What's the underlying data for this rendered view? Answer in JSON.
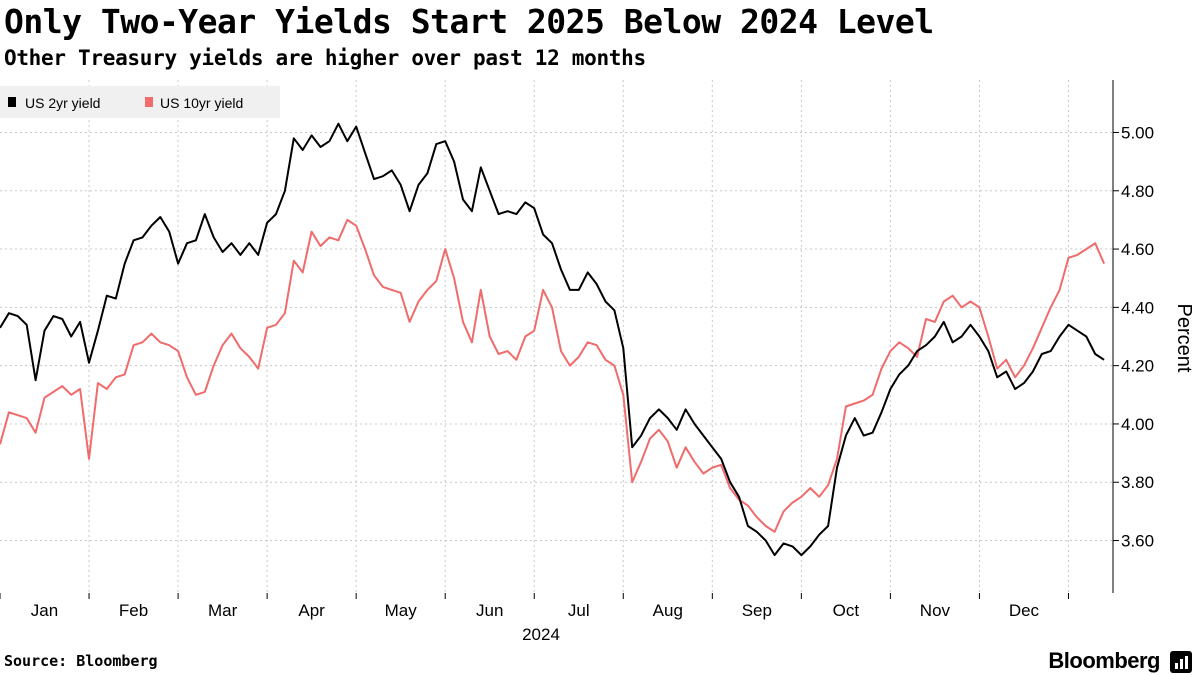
{
  "title": "Only Two-Year Yields Start 2025 Below 2024 Level",
  "subtitle": "Other Treasury yields are higher over past 12 months",
  "source": "Source: Bloomberg",
  "brand": "Bloomberg",
  "chart_data": {
    "type": "line",
    "xlabel": "2024",
    "ylabel": "Percent",
    "ylim": [
      3.42,
      5.18
    ],
    "yticks": [
      "3.60",
      "3.80",
      "4.00",
      "4.20",
      "4.40",
      "4.60",
      "4.80",
      "5.00"
    ],
    "xlim": [
      0,
      12.5
    ],
    "months": [
      "Jan",
      "Feb",
      "Mar",
      "Apr",
      "May",
      "Jun",
      "Jul",
      "Aug",
      "Sep",
      "Oct",
      "Nov",
      "Dec"
    ],
    "grid": true,
    "legend": "top-left",
    "series": [
      {
        "name": "US 2yr yield",
        "color": "#000000",
        "points": [
          [
            0.0,
            4.33
          ],
          [
            0.1,
            4.38
          ],
          [
            0.2,
            4.37
          ],
          [
            0.3,
            4.34
          ],
          [
            0.4,
            4.15
          ],
          [
            0.5,
            4.32
          ],
          [
            0.6,
            4.37
          ],
          [
            0.7,
            4.36
          ],
          [
            0.8,
            4.3
          ],
          [
            0.9,
            4.35
          ],
          [
            1.0,
            4.21
          ],
          [
            1.1,
            4.32
          ],
          [
            1.2,
            4.44
          ],
          [
            1.3,
            4.43
          ],
          [
            1.4,
            4.55
          ],
          [
            1.5,
            4.63
          ],
          [
            1.6,
            4.64
          ],
          [
            1.7,
            4.68
          ],
          [
            1.8,
            4.71
          ],
          [
            1.9,
            4.66
          ],
          [
            2.0,
            4.55
          ],
          [
            2.1,
            4.62
          ],
          [
            2.2,
            4.63
          ],
          [
            2.3,
            4.72
          ],
          [
            2.4,
            4.64
          ],
          [
            2.5,
            4.59
          ],
          [
            2.6,
            4.62
          ],
          [
            2.7,
            4.58
          ],
          [
            2.8,
            4.62
          ],
          [
            2.9,
            4.58
          ],
          [
            3.0,
            4.69
          ],
          [
            3.1,
            4.72
          ],
          [
            3.2,
            4.8
          ],
          [
            3.3,
            4.98
          ],
          [
            3.4,
            4.94
          ],
          [
            3.5,
            4.99
          ],
          [
            3.6,
            4.95
          ],
          [
            3.7,
            4.97
          ],
          [
            3.8,
            5.03
          ],
          [
            3.9,
            4.97
          ],
          [
            4.0,
            5.02
          ],
          [
            4.1,
            4.93
          ],
          [
            4.2,
            4.84
          ],
          [
            4.3,
            4.85
          ],
          [
            4.4,
            4.87
          ],
          [
            4.5,
            4.82
          ],
          [
            4.6,
            4.73
          ],
          [
            4.7,
            4.82
          ],
          [
            4.8,
            4.86
          ],
          [
            4.9,
            4.96
          ],
          [
            5.0,
            4.97
          ],
          [
            5.1,
            4.9
          ],
          [
            5.2,
            4.77
          ],
          [
            5.3,
            4.73
          ],
          [
            5.4,
            4.88
          ],
          [
            5.5,
            4.8
          ],
          [
            5.6,
            4.72
          ],
          [
            5.7,
            4.73
          ],
          [
            5.8,
            4.72
          ],
          [
            5.9,
            4.76
          ],
          [
            6.0,
            4.74
          ],
          [
            6.1,
            4.65
          ],
          [
            6.2,
            4.62
          ],
          [
            6.3,
            4.53
          ],
          [
            6.4,
            4.46
          ],
          [
            6.5,
            4.46
          ],
          [
            6.6,
            4.52
          ],
          [
            6.7,
            4.48
          ],
          [
            6.8,
            4.42
          ],
          [
            6.9,
            4.39
          ],
          [
            7.0,
            4.26
          ],
          [
            7.1,
            3.92
          ],
          [
            7.2,
            3.96
          ],
          [
            7.3,
            4.02
          ],
          [
            7.4,
            4.05
          ],
          [
            7.5,
            4.02
          ],
          [
            7.6,
            3.98
          ],
          [
            7.7,
            4.05
          ],
          [
            7.8,
            4.0
          ],
          [
            7.9,
            3.96
          ],
          [
            8.0,
            3.92
          ],
          [
            8.1,
            3.88
          ],
          [
            8.2,
            3.8
          ],
          [
            8.3,
            3.75
          ],
          [
            8.4,
            3.65
          ],
          [
            8.5,
            3.63
          ],
          [
            8.6,
            3.6
          ],
          [
            8.7,
            3.55
          ],
          [
            8.8,
            3.59
          ],
          [
            8.9,
            3.58
          ],
          [
            9.0,
            3.55
          ],
          [
            9.1,
            3.58
          ],
          [
            9.2,
            3.62
          ],
          [
            9.3,
            3.65
          ],
          [
            9.4,
            3.85
          ],
          [
            9.5,
            3.96
          ],
          [
            9.6,
            4.02
          ],
          [
            9.7,
            3.96
          ],
          [
            9.8,
            3.97
          ],
          [
            9.9,
            4.04
          ],
          [
            10.0,
            4.12
          ],
          [
            10.1,
            4.17
          ],
          [
            10.2,
            4.2
          ],
          [
            10.3,
            4.25
          ],
          [
            10.4,
            4.27
          ],
          [
            10.5,
            4.3
          ],
          [
            10.6,
            4.35
          ],
          [
            10.7,
            4.28
          ],
          [
            10.8,
            4.3
          ],
          [
            10.9,
            4.34
          ],
          [
            11.0,
            4.3
          ],
          [
            11.1,
            4.25
          ],
          [
            11.2,
            4.16
          ],
          [
            11.3,
            4.18
          ],
          [
            11.4,
            4.12
          ],
          [
            11.5,
            4.14
          ],
          [
            11.6,
            4.18
          ],
          [
            11.7,
            4.24
          ],
          [
            11.8,
            4.25
          ],
          [
            11.9,
            4.3
          ],
          [
            12.0,
            4.34
          ],
          [
            12.1,
            4.32
          ],
          [
            12.2,
            4.3
          ],
          [
            12.3,
            4.24
          ],
          [
            12.4,
            4.22
          ]
        ]
      },
      {
        "name": "US 10yr yield",
        "color": "#f06b6b",
        "points": [
          [
            0.0,
            3.93
          ],
          [
            0.1,
            4.04
          ],
          [
            0.2,
            4.03
          ],
          [
            0.3,
            4.02
          ],
          [
            0.4,
            3.97
          ],
          [
            0.5,
            4.09
          ],
          [
            0.6,
            4.11
          ],
          [
            0.7,
            4.13
          ],
          [
            0.8,
            4.1
          ],
          [
            0.9,
            4.12
          ],
          [
            1.0,
            3.88
          ],
          [
            1.1,
            4.14
          ],
          [
            1.2,
            4.12
          ],
          [
            1.3,
            4.16
          ],
          [
            1.4,
            4.17
          ],
          [
            1.5,
            4.27
          ],
          [
            1.6,
            4.28
          ],
          [
            1.7,
            4.31
          ],
          [
            1.8,
            4.28
          ],
          [
            1.9,
            4.27
          ],
          [
            2.0,
            4.25
          ],
          [
            2.1,
            4.16
          ],
          [
            2.2,
            4.1
          ],
          [
            2.3,
            4.11
          ],
          [
            2.4,
            4.2
          ],
          [
            2.5,
            4.27
          ],
          [
            2.6,
            4.31
          ],
          [
            2.7,
            4.26
          ],
          [
            2.8,
            4.23
          ],
          [
            2.9,
            4.19
          ],
          [
            3.0,
            4.33
          ],
          [
            3.1,
            4.34
          ],
          [
            3.2,
            4.38
          ],
          [
            3.3,
            4.56
          ],
          [
            3.4,
            4.52
          ],
          [
            3.5,
            4.66
          ],
          [
            3.6,
            4.61
          ],
          [
            3.7,
            4.64
          ],
          [
            3.8,
            4.63
          ],
          [
            3.9,
            4.7
          ],
          [
            4.0,
            4.68
          ],
          [
            4.1,
            4.6
          ],
          [
            4.2,
            4.51
          ],
          [
            4.3,
            4.47
          ],
          [
            4.4,
            4.46
          ],
          [
            4.5,
            4.45
          ],
          [
            4.6,
            4.35
          ],
          [
            4.7,
            4.42
          ],
          [
            4.8,
            4.46
          ],
          [
            4.9,
            4.49
          ],
          [
            5.0,
            4.6
          ],
          [
            5.1,
            4.5
          ],
          [
            5.2,
            4.35
          ],
          [
            5.3,
            4.28
          ],
          [
            5.4,
            4.46
          ],
          [
            5.5,
            4.3
          ],
          [
            5.6,
            4.24
          ],
          [
            5.7,
            4.25
          ],
          [
            5.8,
            4.22
          ],
          [
            5.9,
            4.3
          ],
          [
            6.0,
            4.32
          ],
          [
            6.1,
            4.46
          ],
          [
            6.2,
            4.4
          ],
          [
            6.3,
            4.25
          ],
          [
            6.4,
            4.2
          ],
          [
            6.5,
            4.23
          ],
          [
            6.6,
            4.28
          ],
          [
            6.7,
            4.27
          ],
          [
            6.8,
            4.22
          ],
          [
            6.9,
            4.2
          ],
          [
            7.0,
            4.1
          ],
          [
            7.1,
            3.8
          ],
          [
            7.2,
            3.87
          ],
          [
            7.3,
            3.95
          ],
          [
            7.4,
            3.98
          ],
          [
            7.5,
            3.94
          ],
          [
            7.6,
            3.85
          ],
          [
            7.7,
            3.92
          ],
          [
            7.8,
            3.87
          ],
          [
            7.9,
            3.83
          ],
          [
            8.0,
            3.85
          ],
          [
            8.1,
            3.86
          ],
          [
            8.2,
            3.78
          ],
          [
            8.3,
            3.74
          ],
          [
            8.4,
            3.72
          ],
          [
            8.5,
            3.68
          ],
          [
            8.6,
            3.65
          ],
          [
            8.7,
            3.63
          ],
          [
            8.8,
            3.7
          ],
          [
            8.9,
            3.73
          ],
          [
            9.0,
            3.75
          ],
          [
            9.1,
            3.78
          ],
          [
            9.2,
            3.75
          ],
          [
            9.3,
            3.79
          ],
          [
            9.4,
            3.88
          ],
          [
            9.5,
            4.06
          ],
          [
            9.6,
            4.07
          ],
          [
            9.7,
            4.08
          ],
          [
            9.8,
            4.1
          ],
          [
            9.9,
            4.19
          ],
          [
            10.0,
            4.25
          ],
          [
            10.1,
            4.28
          ],
          [
            10.2,
            4.26
          ],
          [
            10.3,
            4.23
          ],
          [
            10.4,
            4.36
          ],
          [
            10.5,
            4.35
          ],
          [
            10.6,
            4.42
          ],
          [
            10.7,
            4.44
          ],
          [
            10.8,
            4.4
          ],
          [
            10.9,
            4.42
          ],
          [
            11.0,
            4.4
          ],
          [
            11.1,
            4.3
          ],
          [
            11.2,
            4.19
          ],
          [
            11.3,
            4.22
          ],
          [
            11.4,
            4.16
          ],
          [
            11.5,
            4.2
          ],
          [
            11.6,
            4.26
          ],
          [
            11.7,
            4.33
          ],
          [
            11.8,
            4.4
          ],
          [
            11.9,
            4.46
          ],
          [
            12.0,
            4.57
          ],
          [
            12.1,
            4.58
          ],
          [
            12.2,
            4.6
          ],
          [
            12.3,
            4.62
          ],
          [
            12.4,
            4.55
          ]
        ]
      }
    ]
  }
}
